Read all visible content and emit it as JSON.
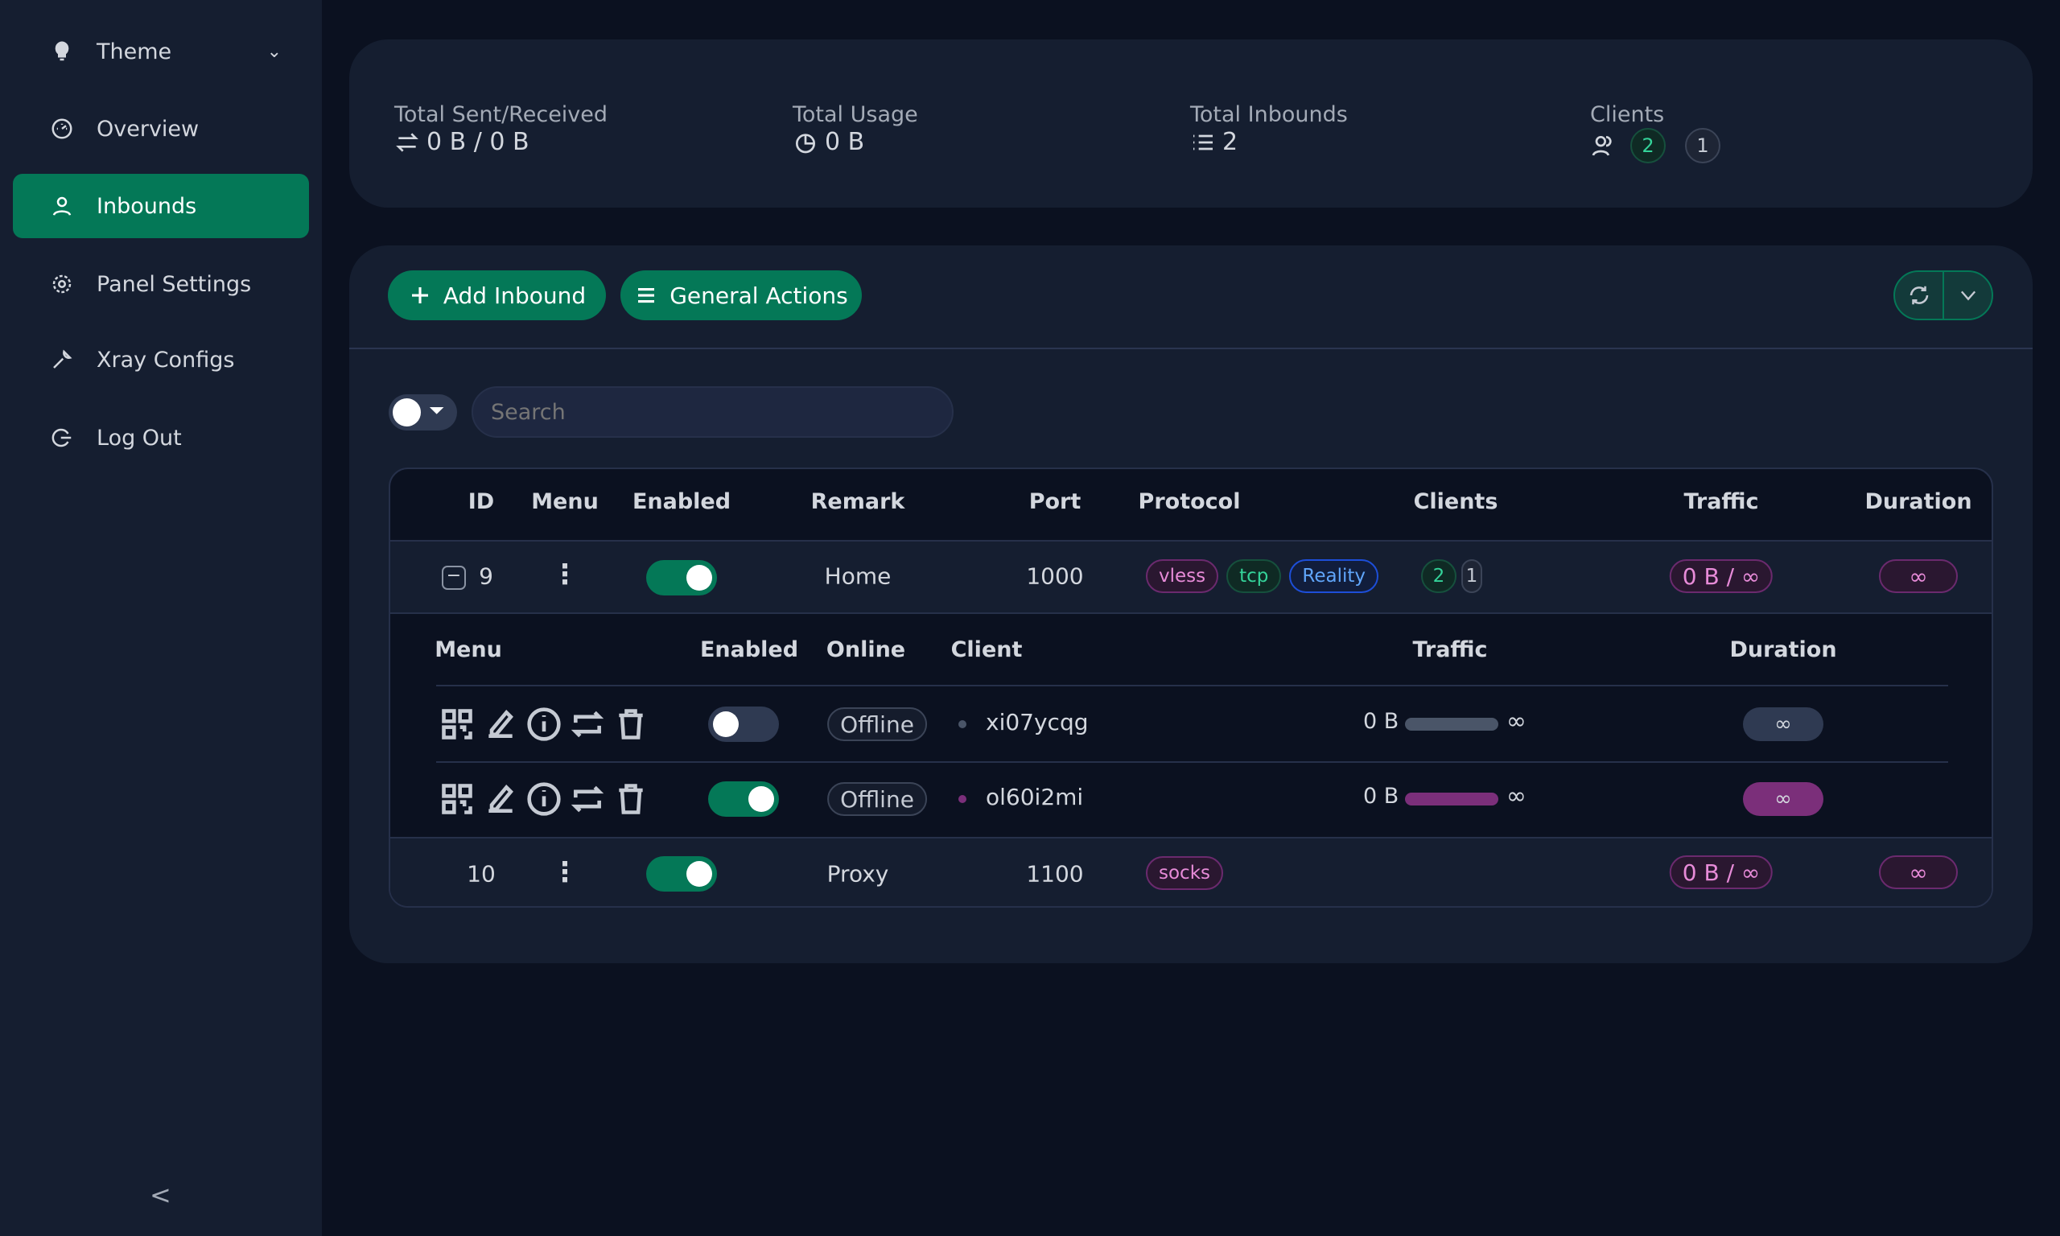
{
  "sidebar": {
    "items": [
      {
        "label": "Theme",
        "icon": "bulb-icon"
      },
      {
        "label": "Overview",
        "icon": "dashboard-icon"
      },
      {
        "label": "Inbounds",
        "icon": "user-icon",
        "active": true
      },
      {
        "label": "Panel Settings",
        "icon": "gear-icon"
      },
      {
        "label": "Xray Configs",
        "icon": "wrench-icon"
      },
      {
        "label": "Log Out",
        "icon": "logout-icon"
      }
    ],
    "collapse": "<"
  },
  "stats": {
    "sent_received": {
      "label": "Total Sent/Received",
      "value": "0 B / 0 B"
    },
    "usage": {
      "label": "Total Usage",
      "value": "0 B"
    },
    "inbounds": {
      "label": "Total Inbounds",
      "value": "2"
    },
    "clients": {
      "label": "Clients",
      "active": "2",
      "other": "1"
    }
  },
  "toolbar": {
    "add_label": "Add Inbound",
    "general_label": "General Actions",
    "search_placeholder": "Search"
  },
  "table": {
    "headers": [
      "ID",
      "Menu",
      "Enabled",
      "Remark",
      "Port",
      "Protocol",
      "Clients",
      "Traffic",
      "Duration"
    ],
    "rows": [
      {
        "id": "9",
        "enabled": true,
        "remark": "Home",
        "port": "1000",
        "protocol": [
          "vless",
          "tcp",
          "Reality"
        ],
        "clients": [
          "2",
          "1"
        ],
        "traffic": "0 B / ∞",
        "duration": "∞"
      },
      {
        "id": "10",
        "enabled": true,
        "remark": "Proxy",
        "port": "1100",
        "protocol": [
          "socks"
        ],
        "traffic": "0 B / ∞",
        "duration": "∞"
      }
    ],
    "sub": {
      "headers": [
        "Menu",
        "Enabled",
        "Online",
        "Client",
        "Traffic",
        "Duration"
      ],
      "rows": [
        {
          "enabled": false,
          "online": "Offline",
          "client": "xi07ycqg",
          "traffic": "0 B",
          "limit": "∞",
          "duration": "∞",
          "color": "#4a5568"
        },
        {
          "enabled": true,
          "online": "Offline",
          "client": "ol60i2mi",
          "traffic": "0 B",
          "limit": "∞",
          "duration": "∞",
          "color": "#7b2f7a"
        }
      ]
    }
  },
  "colors": {
    "accent": "#047857",
    "bg": "#0b1120",
    "card": "#151e30"
  }
}
